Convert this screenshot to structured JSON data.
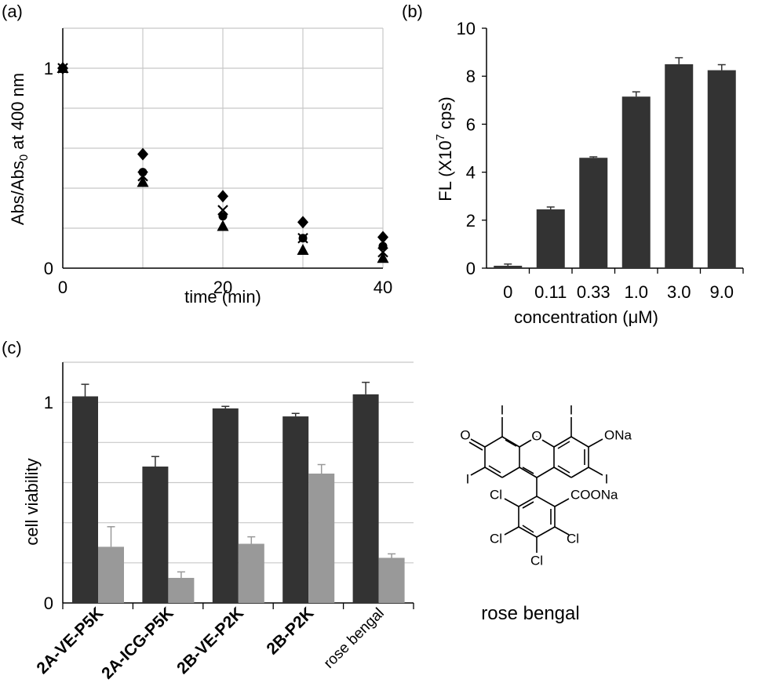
{
  "chart_data": [
    {
      "panel_label": "(a)",
      "type": "scatter",
      "title": "",
      "xlabel": "time (min)",
      "ylabel": "Abs/Abs",
      "ylabel_sub": "0",
      "ylabel_tail": " at 400 nm",
      "xlim": [
        0,
        40
      ],
      "ylim": [
        0,
        1.2
      ],
      "xticks": [
        0,
        20,
        40
      ],
      "yticks": [
        0,
        1
      ],
      "x_gridlines": [
        0,
        10,
        20,
        30,
        40
      ],
      "y_gridlines": [
        0.2,
        0.4,
        0.6,
        0.8,
        1.0,
        1.2
      ],
      "grid": true,
      "legend": "none",
      "series": [
        {
          "marker": "diamond",
          "x": [
            0,
            10,
            20,
            30,
            40
          ],
          "y": [
            1.0,
            0.57,
            0.36,
            0.23,
            0.155
          ]
        },
        {
          "marker": "circle",
          "x": [
            0,
            10,
            20,
            30,
            40
          ],
          "y": [
            1.0,
            0.48,
            0.26,
            0.15,
            0.11
          ]
        },
        {
          "marker": "cross",
          "x": [
            0,
            10,
            20,
            30,
            40
          ],
          "y": [
            1.0,
            0.46,
            0.29,
            0.15,
            0.08
          ]
        },
        {
          "marker": "triangle",
          "x": [
            0,
            10,
            20,
            30,
            40
          ],
          "y": [
            1.0,
            0.43,
            0.21,
            0.09,
            0.05
          ]
        }
      ]
    },
    {
      "panel_label": "(b)",
      "type": "bar",
      "title": "",
      "xlabel": "concentration (μM)",
      "ylabel": "FL (X10",
      "ylabel_sup": "7",
      "ylabel_tail": " cps)",
      "categories": [
        "0",
        "0.11",
        "0.33",
        "1.0",
        "3.0",
        "9.0"
      ],
      "ylim": [
        0,
        10
      ],
      "yticks": [
        0,
        2,
        4,
        6,
        8,
        10
      ],
      "grid": false,
      "legend": "none",
      "bar_color": "#333333",
      "series": [
        {
          "values": [
            0.1,
            2.45,
            4.6,
            7.15,
            8.5,
            8.25
          ],
          "errors": [
            0.07,
            0.1,
            0.04,
            0.2,
            0.27,
            0.23
          ]
        }
      ]
    },
    {
      "panel_label": "(c)",
      "type": "bar",
      "title": "",
      "xlabel": "",
      "ylabel": "cell viability",
      "categories": [
        "2A-VE-P5K",
        "2A-ICG-P5K",
        "2B-VE-P2K",
        "2B-P2K",
        "rose bengal"
      ],
      "category_bold": [
        true,
        true,
        true,
        true,
        false
      ],
      "ylim": [
        0,
        1.2
      ],
      "yticks": [
        0,
        1
      ],
      "y_gridlines": [
        0.2,
        0.4,
        0.6,
        0.8,
        1.0,
        1.2
      ],
      "grid": true,
      "legend": "none",
      "series": [
        {
          "color": "#333333",
          "values": [
            1.03,
            0.68,
            0.97,
            0.93,
            1.04
          ],
          "errors": [
            0.06,
            0.05,
            0.01,
            0.015,
            0.06
          ]
        },
        {
          "color": "#999999",
          "values": [
            0.28,
            0.125,
            0.295,
            0.645,
            0.225
          ],
          "errors": [
            0.1,
            0.03,
            0.035,
            0.045,
            0.02
          ]
        }
      ]
    }
  ],
  "molecule": {
    "caption": "rose bengal",
    "atoms": {
      "o_ketone": "O",
      "o_ring": "O",
      "ona": "ONa",
      "coona": "COONa",
      "iodine": "I",
      "chlorine": "Cl"
    }
  }
}
